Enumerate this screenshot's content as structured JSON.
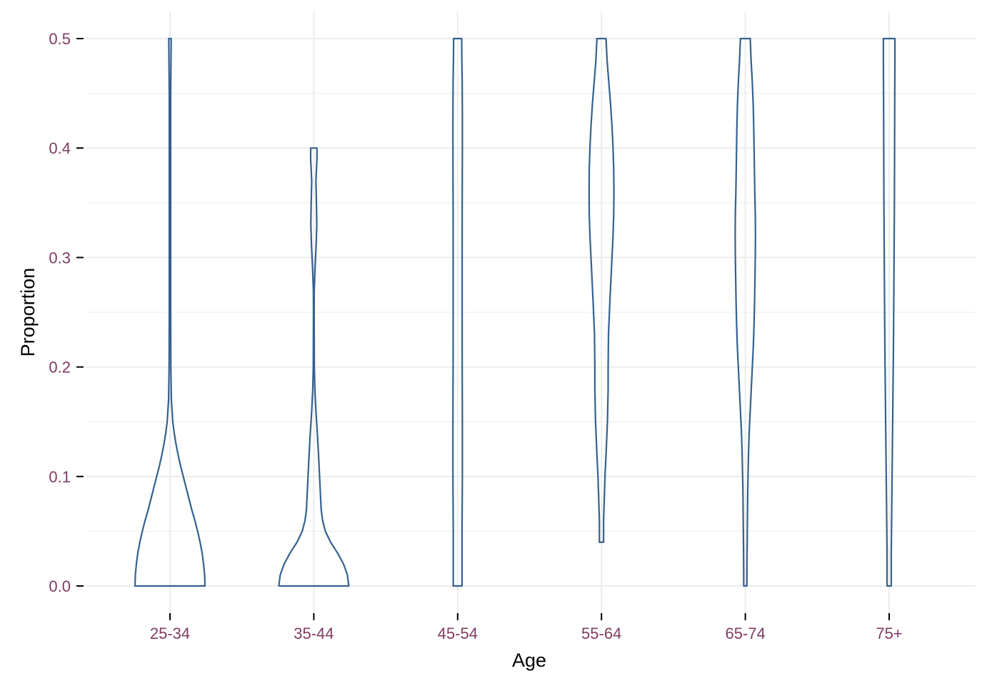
{
  "chart_data": {
    "type": "violin",
    "title": "",
    "xlabel": "Age",
    "ylabel": "Proportion",
    "categories": [
      "25-34",
      "35-44",
      "45-54",
      "55-64",
      "65-74",
      "75+"
    ],
    "ylim": [
      0.0,
      0.5
    ],
    "yticks": [
      {
        "value": 0.0,
        "label": "0.0"
      },
      {
        "value": 0.1,
        "label": "0.1"
      },
      {
        "value": 0.2,
        "label": "0.2"
      },
      {
        "value": 0.3,
        "label": "0.3"
      },
      {
        "value": 0.4,
        "label": "0.4"
      },
      {
        "value": 0.5,
        "label": "0.5"
      }
    ],
    "grid": true,
    "legend": "none",
    "colors": {
      "violin_stroke": "#35618f",
      "tick_label": "#7f3b63",
      "grid": "#ececec",
      "tick": "#000000"
    },
    "violins": [
      {
        "category": "25-34",
        "range": [
          0.0,
          0.5
        ],
        "density": [
          [
            0.0,
            1.0
          ],
          [
            0.01,
            0.99
          ],
          [
            0.02,
            0.96
          ],
          [
            0.03,
            0.92
          ],
          [
            0.04,
            0.86
          ],
          [
            0.05,
            0.79
          ],
          [
            0.06,
            0.71
          ],
          [
            0.07,
            0.62
          ],
          [
            0.08,
            0.54
          ],
          [
            0.09,
            0.46
          ],
          [
            0.1,
            0.38
          ],
          [
            0.11,
            0.3
          ],
          [
            0.12,
            0.23
          ],
          [
            0.13,
            0.17
          ],
          [
            0.14,
            0.12
          ],
          [
            0.15,
            0.08
          ],
          [
            0.17,
            0.04
          ],
          [
            0.2,
            0.025
          ],
          [
            0.25,
            0.02
          ],
          [
            0.3,
            0.02
          ],
          [
            0.35,
            0.02
          ],
          [
            0.4,
            0.02
          ],
          [
            0.45,
            0.02
          ],
          [
            0.5,
            0.035
          ]
        ]
      },
      {
        "category": "35-44",
        "range": [
          0.0,
          0.4
        ],
        "density": [
          [
            0.0,
            1.0
          ],
          [
            0.01,
            0.96
          ],
          [
            0.02,
            0.85
          ],
          [
            0.03,
            0.68
          ],
          [
            0.04,
            0.48
          ],
          [
            0.05,
            0.33
          ],
          [
            0.06,
            0.25
          ],
          [
            0.07,
            0.21
          ],
          [
            0.08,
            0.195
          ],
          [
            0.1,
            0.165
          ],
          [
            0.12,
            0.135
          ],
          [
            0.14,
            0.1
          ],
          [
            0.16,
            0.06
          ],
          [
            0.18,
            0.03
          ],
          [
            0.2,
            0.015
          ],
          [
            0.25,
            0.01
          ],
          [
            0.27,
            0.012
          ],
          [
            0.29,
            0.035
          ],
          [
            0.31,
            0.065
          ],
          [
            0.33,
            0.085
          ],
          [
            0.35,
            0.075
          ],
          [
            0.37,
            0.06
          ],
          [
            0.39,
            0.09
          ],
          [
            0.4,
            0.09
          ]
        ]
      },
      {
        "category": "45-54",
        "range": [
          0.0,
          0.5
        ],
        "density": [
          [
            0.0,
            0.125
          ],
          [
            0.05,
            0.125
          ],
          [
            0.1,
            0.135
          ],
          [
            0.15,
            0.135
          ],
          [
            0.2,
            0.13
          ],
          [
            0.25,
            0.128
          ],
          [
            0.3,
            0.128
          ],
          [
            0.35,
            0.13
          ],
          [
            0.4,
            0.135
          ],
          [
            0.43,
            0.135
          ],
          [
            0.46,
            0.13
          ],
          [
            0.48,
            0.12
          ],
          [
            0.5,
            0.115
          ]
        ]
      },
      {
        "category": "55-64",
        "range": [
          0.04,
          0.5
        ],
        "density": [
          [
            0.04,
            0.06
          ],
          [
            0.06,
            0.06
          ],
          [
            0.08,
            0.08
          ],
          [
            0.1,
            0.1
          ],
          [
            0.12,
            0.13
          ],
          [
            0.15,
            0.17
          ],
          [
            0.18,
            0.19
          ],
          [
            0.2,
            0.19
          ],
          [
            0.23,
            0.2
          ],
          [
            0.26,
            0.24
          ],
          [
            0.28,
            0.27
          ],
          [
            0.3,
            0.3
          ],
          [
            0.32,
            0.33
          ],
          [
            0.34,
            0.35
          ],
          [
            0.36,
            0.355
          ],
          [
            0.38,
            0.35
          ],
          [
            0.4,
            0.33
          ],
          [
            0.42,
            0.3
          ],
          [
            0.44,
            0.26
          ],
          [
            0.46,
            0.21
          ],
          [
            0.48,
            0.16
          ],
          [
            0.5,
            0.13
          ]
        ]
      },
      {
        "category": "65-74",
        "range": [
          0.0,
          0.5
        ],
        "density": [
          [
            0.0,
            0.045
          ],
          [
            0.03,
            0.05
          ],
          [
            0.06,
            0.06
          ],
          [
            0.09,
            0.07
          ],
          [
            0.12,
            0.09
          ],
          [
            0.14,
            0.11
          ],
          [
            0.16,
            0.14
          ],
          [
            0.18,
            0.17
          ],
          [
            0.2,
            0.2
          ],
          [
            0.22,
            0.23
          ],
          [
            0.24,
            0.25
          ],
          [
            0.26,
            0.265
          ],
          [
            0.28,
            0.275
          ],
          [
            0.3,
            0.285
          ],
          [
            0.32,
            0.29
          ],
          [
            0.34,
            0.285
          ],
          [
            0.36,
            0.27
          ],
          [
            0.38,
            0.26
          ],
          [
            0.4,
            0.25
          ],
          [
            0.42,
            0.24
          ],
          [
            0.44,
            0.225
          ],
          [
            0.46,
            0.2
          ],
          [
            0.48,
            0.165
          ],
          [
            0.5,
            0.14
          ]
        ]
      },
      {
        "category": "75+",
        "range": [
          0.0,
          0.5
        ],
        "density": [
          [
            0.0,
            0.06
          ],
          [
            0.03,
            0.06
          ],
          [
            0.06,
            0.07
          ],
          [
            0.09,
            0.08
          ],
          [
            0.12,
            0.09
          ],
          [
            0.15,
            0.1
          ],
          [
            0.18,
            0.11
          ],
          [
            0.21,
            0.12
          ],
          [
            0.25,
            0.13
          ],
          [
            0.3,
            0.14
          ],
          [
            0.35,
            0.15
          ],
          [
            0.4,
            0.155
          ],
          [
            0.45,
            0.16
          ],
          [
            0.48,
            0.165
          ],
          [
            0.5,
            0.165
          ]
        ]
      }
    ]
  }
}
